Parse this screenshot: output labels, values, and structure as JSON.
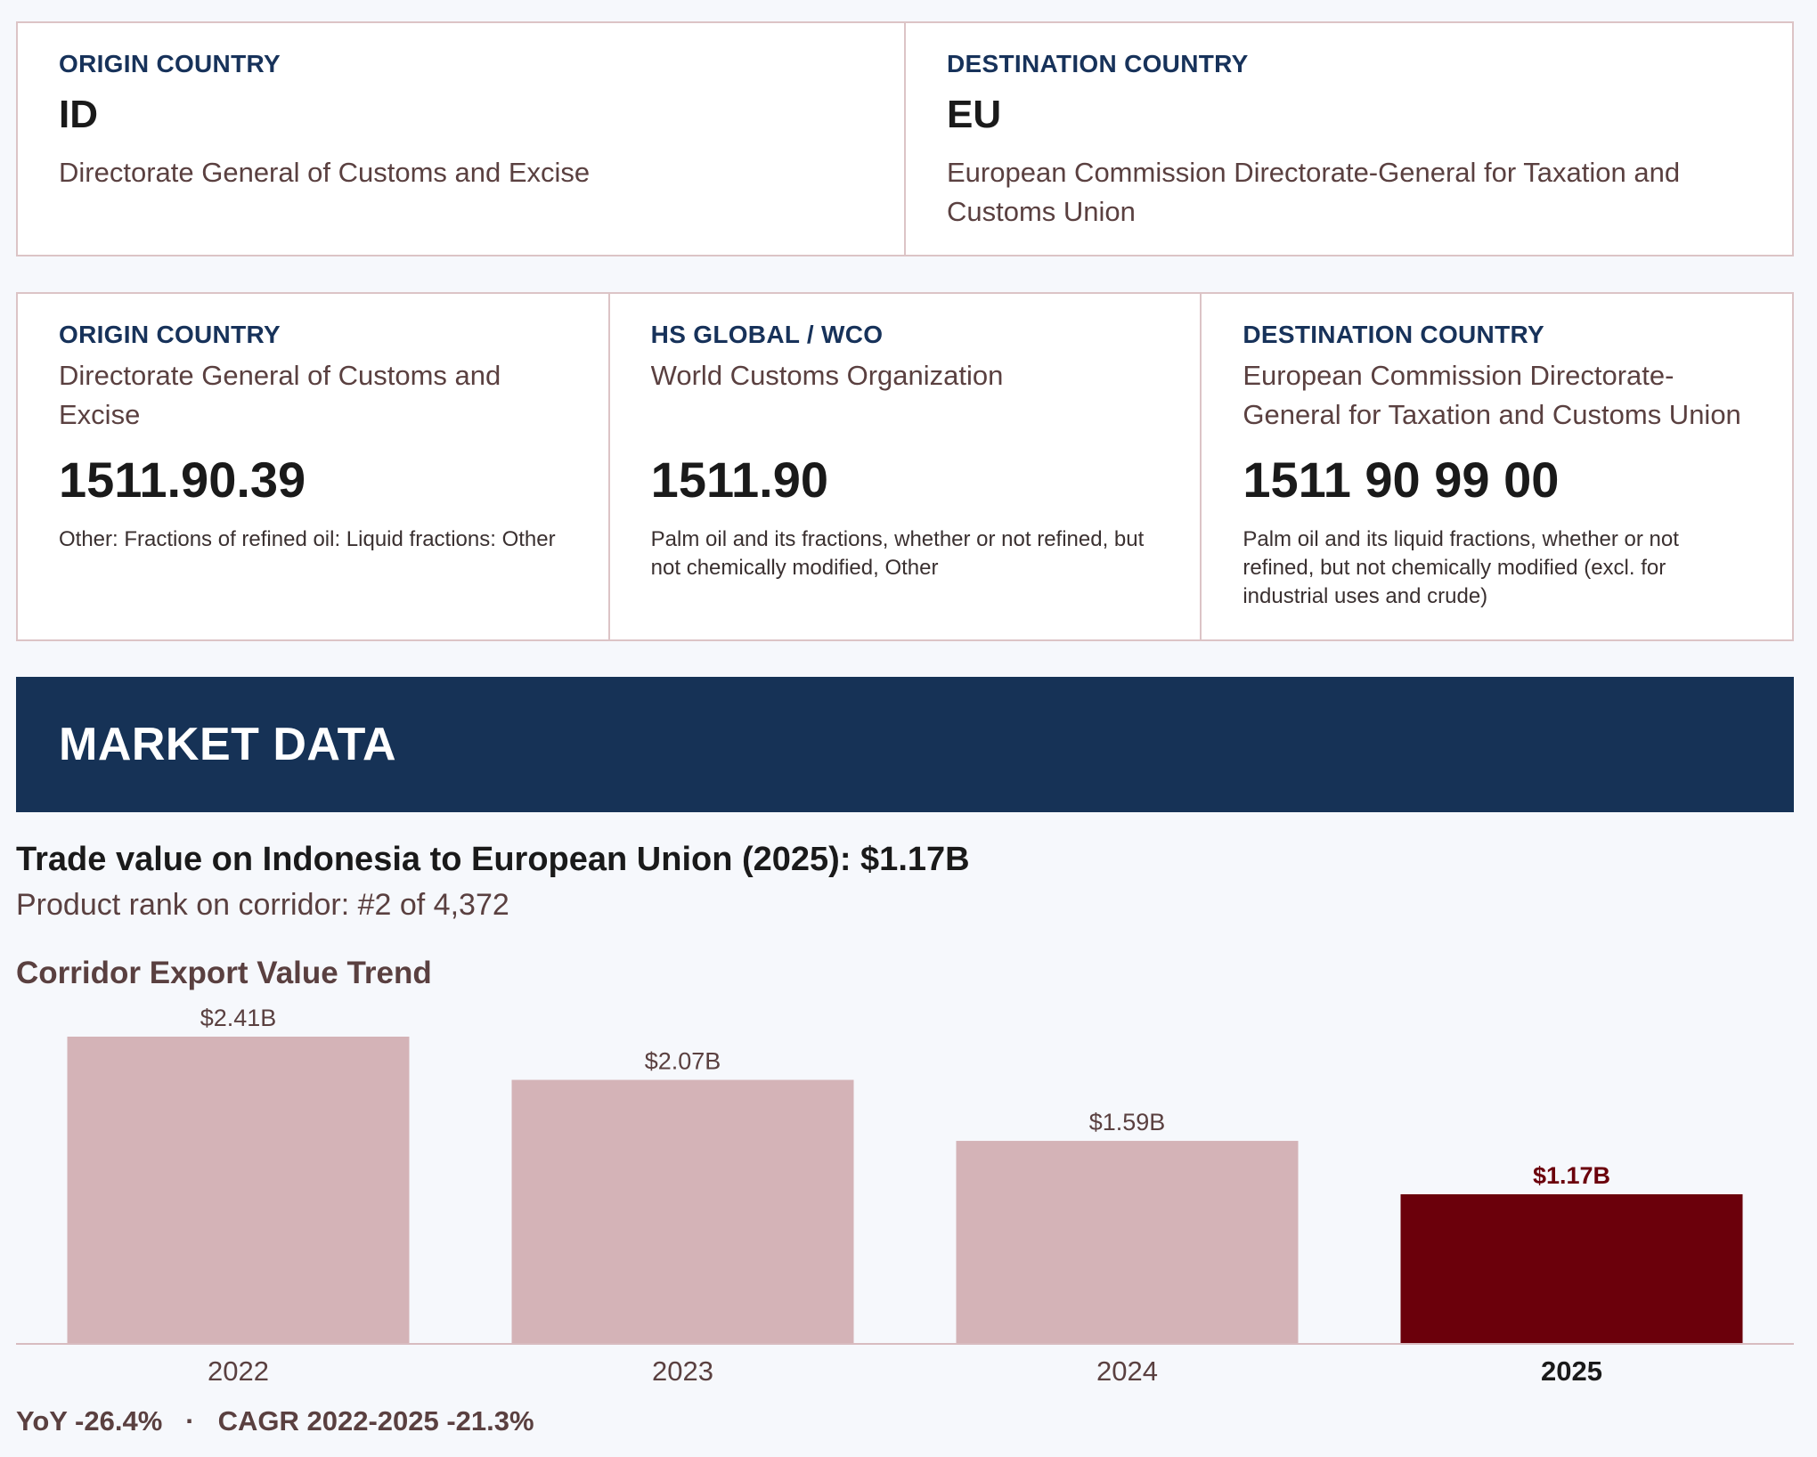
{
  "corridor": {
    "origin": {
      "label": "ORIGIN COUNTRY",
      "code": "ID",
      "authority": "Directorate General of Customs and Excise"
    },
    "destination": {
      "label": "DESTINATION COUNTRY",
      "code": "EU",
      "authority": "European Commission Directorate-General for Taxation and Customs Union"
    }
  },
  "classification": {
    "origin": {
      "label": "ORIGIN COUNTRY",
      "authority": "Directorate General of Customs and Excise",
      "code": "1511.90.39",
      "description": "Other: Fractions of refined oil: Liquid fractions: Other"
    },
    "global": {
      "label": "HS GLOBAL / WCO",
      "authority": "World Customs Organization",
      "code": "1511.90",
      "description": "Palm oil and its fractions, whether or not refined, but not chemically modified, Other"
    },
    "destination": {
      "label": "DESTINATION COUNTRY",
      "authority": "European Commission Directorate-General for Taxation and Customs Union",
      "code": "1511 90 99 00",
      "description": "Palm oil and its liquid fractions, whether or not refined, but not chemically modified (excl. for industrial uses and crude)"
    }
  },
  "market": {
    "band_title": "MARKET DATA",
    "trade_value": "Trade value on Indonesia to European Union (2025): $1.17B",
    "rank": "Product rank on corridor: #2 of 4,372",
    "trend_title": "Corridor Export Value Trend",
    "yoy": "YoY -26.4%",
    "separator": "·",
    "cagr": "CAGR 2022-2025 -21.3%"
  },
  "chart_data": {
    "type": "bar",
    "title": "Corridor Export Value Trend",
    "categories": [
      "2022",
      "2023",
      "2024",
      "2025"
    ],
    "values": [
      2.41,
      2.07,
      1.59,
      1.17
    ],
    "value_labels": [
      "$2.41B",
      "$2.07B",
      "$1.59B",
      "$1.17B"
    ],
    "unit": "USD billions",
    "highlight_index": 3,
    "colors": {
      "bar": "#d4b3b7",
      "highlight": "#6b000b",
      "axis": "#d8bcc0",
      "label": "#5a4040"
    },
    "ylim": [
      0,
      2.41
    ],
    "grid": false,
    "legend": "none"
  }
}
